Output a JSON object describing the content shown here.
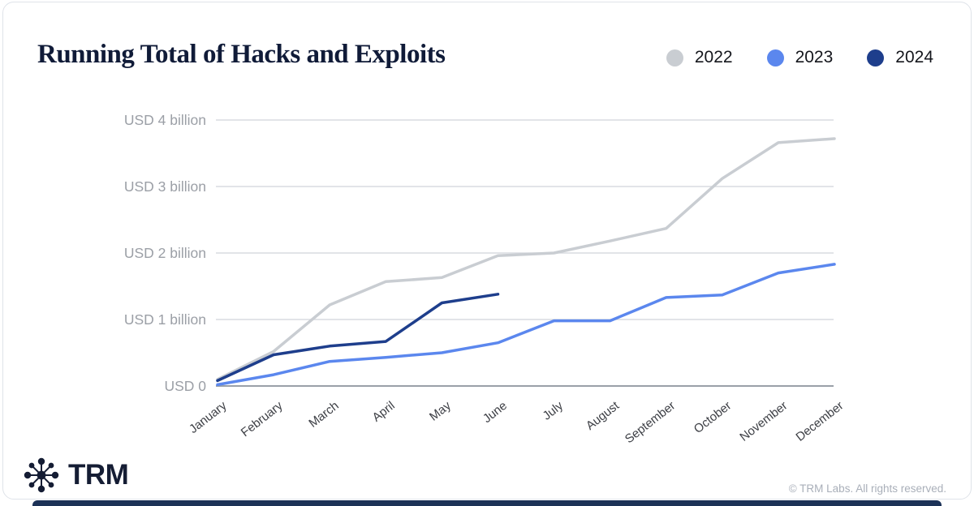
{
  "header": {
    "title": "Running Total of Hacks and Exploits"
  },
  "legend": [
    {
      "label": "2022",
      "color": "#c9cdd2"
    },
    {
      "label": "2023",
      "color": "#5b87ee"
    },
    {
      "label": "2024",
      "color": "#1e3e8c"
    }
  ],
  "chart_data": {
    "type": "line",
    "title": "Running Total of Hacks and Exploits",
    "categories": [
      "January",
      "February",
      "March",
      "April",
      "May",
      "June",
      "July",
      "August",
      "September",
      "October",
      "November",
      "December"
    ],
    "y_ticks": [
      {
        "label": "USD 4 billion",
        "value": 4
      },
      {
        "label": "USD 3 billion",
        "value": 3
      },
      {
        "label": "USD 2 billion",
        "value": 2
      },
      {
        "label": "USD 1 billion",
        "value": 1
      },
      {
        "label": "USD 0",
        "value": 0
      }
    ],
    "ylim": [
      0,
      4
    ],
    "y_unit": "USD billion",
    "grid": true,
    "legend_position": "top-right",
    "series": [
      {
        "name": "2022",
        "color": "#c9cdd2",
        "values": [
          0.1,
          0.52,
          1.22,
          1.57,
          1.63,
          1.96,
          2.0,
          2.18,
          2.37,
          3.12,
          3.66,
          3.72
        ]
      },
      {
        "name": "2023",
        "color": "#5b87ee",
        "values": [
          0.02,
          0.17,
          0.37,
          0.43,
          0.5,
          0.65,
          0.98,
          0.98,
          1.33,
          1.37,
          1.7,
          1.83
        ]
      },
      {
        "name": "2024",
        "color": "#1e3e8c",
        "values": [
          0.08,
          0.47,
          0.6,
          0.67,
          1.25,
          1.38
        ]
      }
    ]
  },
  "footer": {
    "brand": "TRM",
    "copyright": "© TRM Labs. All rights reserved."
  },
  "colors": {
    "title_text": "#101b38",
    "y_tick_text": "#9b9fa6",
    "x_tick_text": "#3e4046",
    "gridline": "#d9dce1",
    "axis_line": "#9aa0a8",
    "bottom_strip": "#1c3257"
  }
}
